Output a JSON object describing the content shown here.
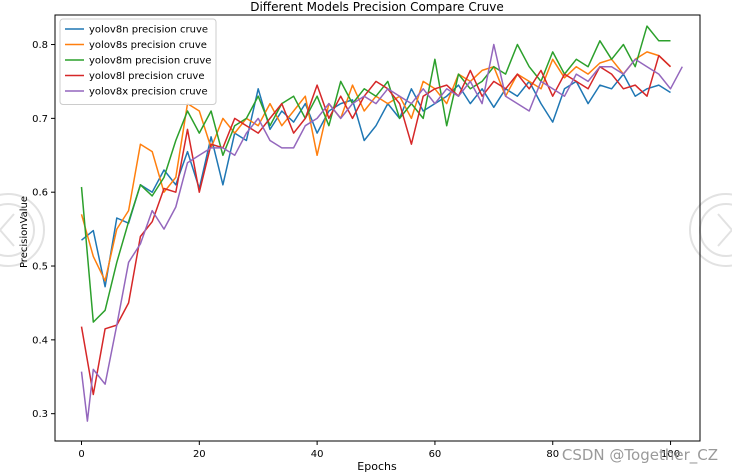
{
  "chart_data": {
    "type": "line",
    "title": "Different Models Precision Compare Cruve",
    "xlabel": "Epochs",
    "ylabel": "PrecisionValue",
    "xlim": [
      -4.5,
      105
    ],
    "ylim": [
      0.263,
      0.84
    ],
    "xticks": [
      0,
      20,
      40,
      60,
      80,
      100
    ],
    "yticks": [
      0.3,
      0.4,
      0.5,
      0.6,
      0.7,
      0.8
    ],
    "grid": false,
    "legend": "top-left",
    "series": [
      {
        "name": "yolov8n precision cruve",
        "color": "#1f77b4",
        "x": [
          0,
          2,
          4,
          6,
          8,
          10,
          12,
          14,
          16,
          18,
          20,
          22,
          24,
          26,
          28,
          30,
          32,
          34,
          36,
          38,
          40,
          42,
          44,
          46,
          48,
          50,
          52,
          54,
          56,
          58,
          60,
          62,
          64,
          66,
          68,
          70,
          72,
          74,
          76,
          78,
          80,
          82,
          84,
          86,
          88,
          90,
          92,
          94,
          96,
          98,
          100
        ],
        "values": [
          0.535,
          0.548,
          0.472,
          0.565,
          0.558,
          0.61,
          0.6,
          0.63,
          0.61,
          0.655,
          0.605,
          0.675,
          0.61,
          0.68,
          0.67,
          0.74,
          0.685,
          0.71,
          0.695,
          0.72,
          0.68,
          0.71,
          0.72,
          0.725,
          0.67,
          0.69,
          0.72,
          0.7,
          0.74,
          0.71,
          0.72,
          0.73,
          0.745,
          0.72,
          0.74,
          0.715,
          0.74,
          0.73,
          0.75,
          0.72,
          0.695,
          0.74,
          0.75,
          0.72,
          0.745,
          0.74,
          0.76,
          0.73,
          0.74,
          0.745,
          0.735
        ]
      },
      {
        "name": "yolov8s precision cruve",
        "color": "#ff7f0e",
        "x": [
          0,
          2,
          4,
          6,
          8,
          10,
          12,
          14,
          16,
          18,
          20,
          22,
          24,
          26,
          28,
          30,
          32,
          34,
          36,
          38,
          40,
          42,
          44,
          46,
          48,
          50,
          52,
          54,
          56,
          58,
          60,
          62,
          64,
          66,
          68,
          70,
          72,
          74,
          76,
          78,
          80,
          82,
          84,
          86,
          88,
          90,
          92,
          94,
          96,
          98,
          100
        ],
        "values": [
          0.57,
          0.513,
          0.48,
          0.55,
          0.575,
          0.665,
          0.655,
          0.6,
          0.62,
          0.72,
          0.71,
          0.66,
          0.7,
          0.68,
          0.7,
          0.69,
          0.72,
          0.69,
          0.71,
          0.73,
          0.65,
          0.72,
          0.7,
          0.745,
          0.71,
          0.73,
          0.72,
          0.73,
          0.7,
          0.75,
          0.74,
          0.72,
          0.76,
          0.75,
          0.765,
          0.77,
          0.73,
          0.76,
          0.75,
          0.74,
          0.78,
          0.755,
          0.77,
          0.76,
          0.775,
          0.78,
          0.76,
          0.78,
          0.79,
          0.785,
          0.77
        ]
      },
      {
        "name": "yolov8m precision cruve",
        "color": "#2ca02c",
        "x": [
          0,
          2,
          4,
          6,
          8,
          10,
          12,
          14,
          16,
          18,
          20,
          22,
          24,
          26,
          28,
          30,
          32,
          34,
          36,
          38,
          40,
          42,
          44,
          46,
          48,
          50,
          52,
          54,
          56,
          58,
          60,
          62,
          64,
          66,
          68,
          70,
          72,
          74,
          76,
          78,
          80,
          82,
          84,
          86,
          88,
          90,
          92,
          94,
          96,
          98,
          100
        ],
        "values": [
          0.607,
          0.424,
          0.44,
          0.505,
          0.56,
          0.61,
          0.595,
          0.62,
          0.67,
          0.71,
          0.68,
          0.71,
          0.65,
          0.69,
          0.7,
          0.73,
          0.69,
          0.72,
          0.73,
          0.7,
          0.73,
          0.69,
          0.75,
          0.72,
          0.74,
          0.73,
          0.75,
          0.7,
          0.72,
          0.7,
          0.78,
          0.69,
          0.76,
          0.74,
          0.75,
          0.77,
          0.76,
          0.8,
          0.77,
          0.75,
          0.79,
          0.76,
          0.78,
          0.77,
          0.805,
          0.78,
          0.8,
          0.77,
          0.825,
          0.805,
          0.805
        ]
      },
      {
        "name": "yolov8l precision cruve",
        "color": "#d62728",
        "x": [
          0,
          2,
          4,
          6,
          8,
          10,
          12,
          14,
          16,
          18,
          20,
          22,
          24,
          26,
          28,
          30,
          32,
          34,
          36,
          38,
          40,
          42,
          44,
          46,
          48,
          50,
          52,
          54,
          56,
          58,
          60,
          62,
          64,
          66,
          68,
          70,
          72,
          74,
          76,
          78,
          80,
          82,
          84,
          86,
          88,
          90,
          92,
          94,
          96,
          98,
          100
        ],
        "values": [
          0.418,
          0.326,
          0.415,
          0.42,
          0.45,
          0.54,
          0.56,
          0.605,
          0.6,
          0.685,
          0.6,
          0.665,
          0.66,
          0.7,
          0.69,
          0.68,
          0.7,
          0.72,
          0.68,
          0.7,
          0.745,
          0.7,
          0.73,
          0.7,
          0.73,
          0.75,
          0.74,
          0.72,
          0.665,
          0.73,
          0.74,
          0.745,
          0.73,
          0.765,
          0.73,
          0.75,
          0.74,
          0.76,
          0.74,
          0.765,
          0.73,
          0.76,
          0.75,
          0.74,
          0.77,
          0.76,
          0.74,
          0.745,
          0.73,
          0.785,
          0.77
        ]
      },
      {
        "name": "yolov8x precision cruve",
        "color": "#9467bd",
        "x": [
          0,
          1,
          2,
          4,
          6,
          8,
          10,
          12,
          14,
          16,
          18,
          20,
          22,
          24,
          26,
          28,
          30,
          32,
          34,
          36,
          38,
          40,
          42,
          44,
          46,
          48,
          50,
          52,
          54,
          56,
          58,
          60,
          62,
          64,
          66,
          68,
          70,
          72,
          74,
          76,
          78,
          80,
          82,
          84,
          86,
          88,
          90,
          92,
          94,
          96,
          98,
          100,
          102
        ],
        "values": [
          0.357,
          0.29,
          0.36,
          0.34,
          0.42,
          0.505,
          0.53,
          0.575,
          0.55,
          0.58,
          0.64,
          0.65,
          0.66,
          0.66,
          0.65,
          0.68,
          0.7,
          0.67,
          0.66,
          0.66,
          0.69,
          0.7,
          0.72,
          0.7,
          0.72,
          0.73,
          0.72,
          0.74,
          0.73,
          0.72,
          0.74,
          0.72,
          0.74,
          0.73,
          0.75,
          0.72,
          0.8,
          0.73,
          0.72,
          0.71,
          0.75,
          0.74,
          0.73,
          0.76,
          0.75,
          0.77,
          0.77,
          0.76,
          0.78,
          0.77,
          0.76,
          0.74,
          0.77
        ]
      }
    ]
  },
  "watermark": "CSDN @Together_CZ"
}
